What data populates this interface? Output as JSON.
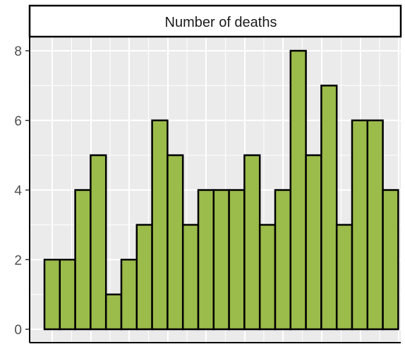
{
  "chart_data": {
    "type": "bar",
    "title": "Number of deaths",
    "xlabel": "",
    "ylabel": "",
    "ylim": [
      0,
      8.8
    ],
    "yticks": [
      0,
      2,
      4,
      6,
      8
    ],
    "grid": true,
    "values": [
      2,
      2,
      4,
      5,
      1,
      2,
      3,
      6,
      5,
      3,
      4,
      4,
      4,
      5,
      3,
      4,
      8,
      5,
      7,
      3,
      6,
      6,
      4
    ],
    "bar_fill": "#9bbb4a",
    "bar_stroke": "#000000",
    "panel_background": "#ebebeb",
    "strip_background": "#ffffff"
  }
}
